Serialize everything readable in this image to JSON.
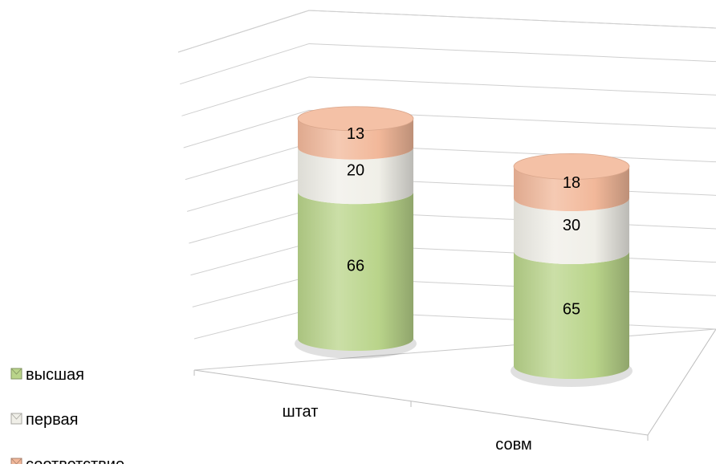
{
  "chart_data": {
    "type": "bar",
    "variant": "3d-stacked-cylinder",
    "categories": [
      "штат",
      "совм"
    ],
    "series": [
      {
        "name": "высшая",
        "values": [
          66,
          65
        ],
        "color": "#b9d48a"
      },
      {
        "name": "первая",
        "values": [
          20,
          30
        ],
        "color": "#f0efe8"
      },
      {
        "name": "соответствие",
        "values": [
          13,
          18
        ],
        "color": "#f2b89a"
      }
    ],
    "legend_position": "left-bottom",
    "grid": true,
    "title": "",
    "xlabel": "",
    "ylabel": ""
  }
}
